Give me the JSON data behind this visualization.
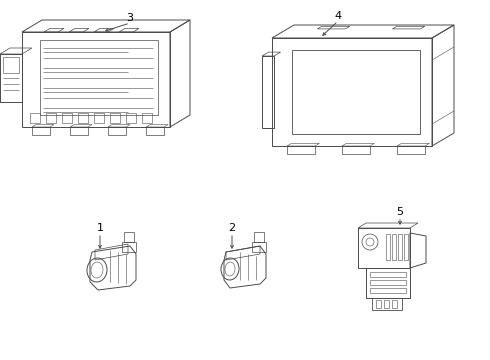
{
  "bg_color": "#ffffff",
  "line_color": "#4a4a4a",
  "label_color": "#000000",
  "figsize": [
    4.9,
    3.6
  ],
  "dpi": 100
}
